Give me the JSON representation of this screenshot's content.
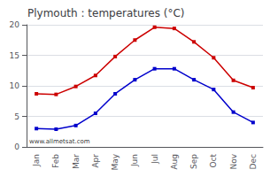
{
  "chart_data": {
    "type": "line",
    "title": "Plymouth : temperatures (°C)",
    "categories": [
      "Jan",
      "Feb",
      "Mar",
      "Apr",
      "May",
      "Jun",
      "Jul",
      "Aug",
      "Sep",
      "Oct",
      "Nov",
      "Dec"
    ],
    "series": [
      {
        "color": "#cc0000",
        "values": [
          8.7,
          8.6,
          9.9,
          11.7,
          14.8,
          17.5,
          19.6,
          19.4,
          17.2,
          14.6,
          10.9,
          9.7
        ]
      },
      {
        "color": "#0000cc",
        "values": [
          3.0,
          2.9,
          3.5,
          5.5,
          8.7,
          11.0,
          12.8,
          12.8,
          11.0,
          9.4,
          5.7,
          4.0
        ]
      }
    ],
    "ylim": [
      0,
      20
    ],
    "yticks": [
      0,
      5,
      10,
      15,
      20
    ],
    "grid": true,
    "marker": "square",
    "annotation": "www.allmetsat.com"
  }
}
